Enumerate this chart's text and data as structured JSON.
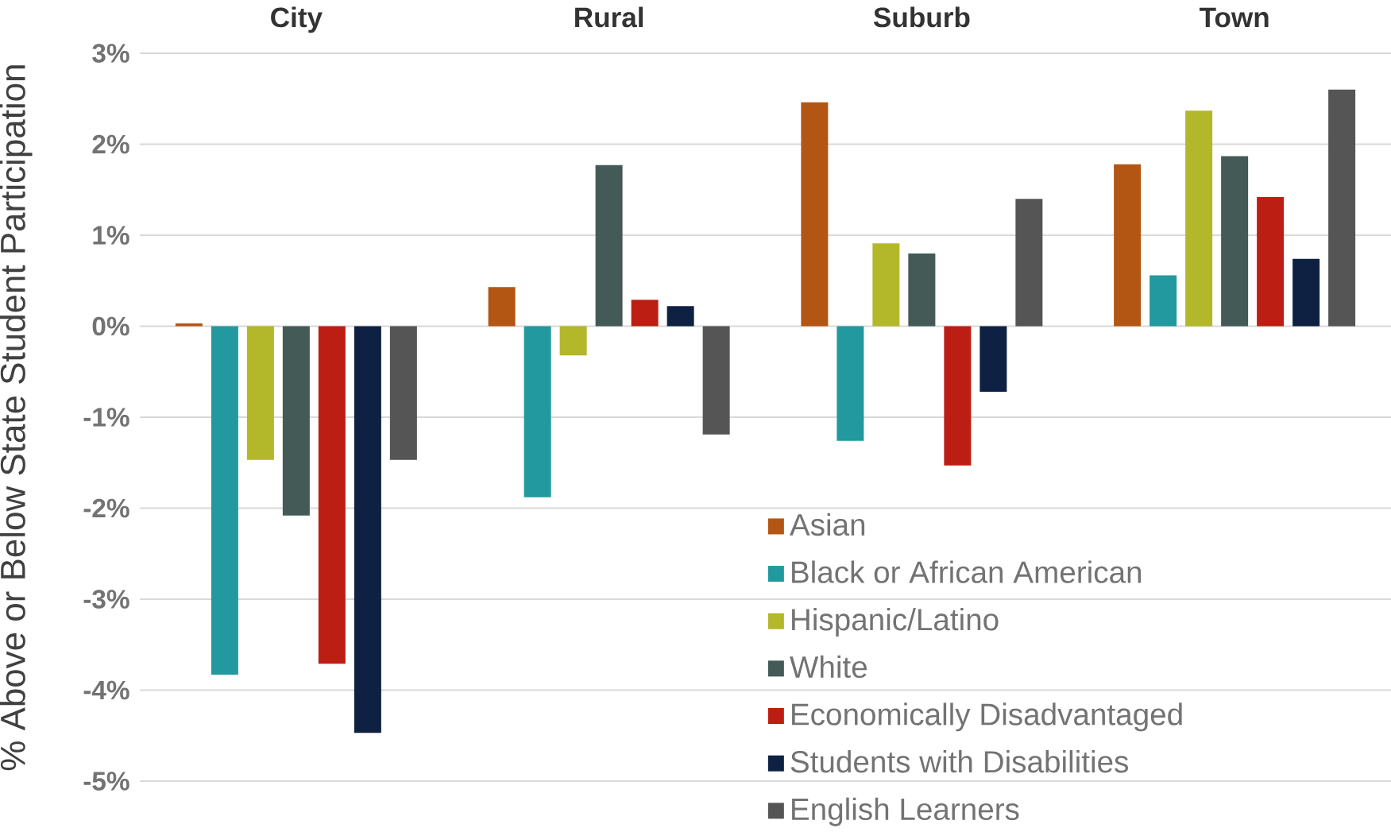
{
  "chart_data": {
    "type": "bar",
    "ylabel": "% Above or Below State Student Participation",
    "categories": [
      "City",
      "Rural",
      "Suburb",
      "Town"
    ],
    "series": [
      {
        "name": "Asian",
        "color": "#b35614",
        "values": [
          0.03,
          0.43,
          2.46,
          1.78
        ]
      },
      {
        "name": "Black or African American",
        "color": "#22999e",
        "values": [
          -3.83,
          -1.88,
          -1.26,
          0.56
        ]
      },
      {
        "name": "Hispanic/Latino",
        "color": "#b3b72a",
        "values": [
          -1.47,
          -0.32,
          0.91,
          2.37
        ]
      },
      {
        "name": "White",
        "color": "#435a57",
        "values": [
          -2.08,
          1.77,
          0.8,
          1.87
        ]
      },
      {
        "name": "Economically Disadvantaged",
        "color": "#bd1e14",
        "values": [
          -3.71,
          0.29,
          -1.53,
          1.42
        ]
      },
      {
        "name": "Students with Disabilities",
        "color": "#0e2142",
        "values": [
          -4.47,
          0.22,
          -0.72,
          0.74
        ]
      },
      {
        "name": "English Learners",
        "color": "#555555",
        "values": [
          -1.47,
          -1.19,
          1.4,
          2.6
        ]
      }
    ],
    "ylim": [
      -5,
      3
    ],
    "yticks": [
      {
        "value": 3,
        "label": "3%"
      },
      {
        "value": 2,
        "label": "2%"
      },
      {
        "value": 1,
        "label": "1%"
      },
      {
        "value": 0,
        "label": "0%"
      },
      {
        "value": -1,
        "label": "-1%"
      },
      {
        "value": -2,
        "label": "-2%"
      },
      {
        "value": -3,
        "label": "-3%"
      },
      {
        "value": -4,
        "label": "-4%"
      },
      {
        "value": -5,
        "label": "-5%"
      }
    ],
    "grid": "y",
    "legend": "bottom right"
  }
}
